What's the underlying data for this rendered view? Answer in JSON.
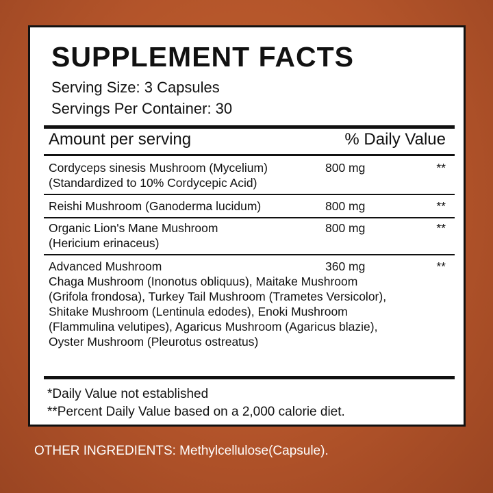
{
  "title": "SUPPLEMENT FACTS",
  "serving_size": "Serving Size: 3 Capsules",
  "servings_per_container": "Servings Per Container: 30",
  "header": {
    "amount": "Amount per serving",
    "daily_value": "% Daily Value"
  },
  "rows": [
    {
      "name": "Cordyceps sinesis Mushroom (Mycelium) (Standardized to 10% Cordycepic Acid)",
      "amount": "800 mg",
      "dv": "**"
    },
    {
      "name": "Reishi Mushroom (Ganoderma lucidum)",
      "amount": "800 mg",
      "dv": "**"
    },
    {
      "name": "Organic Lion's Mane Mushroom (Hericium erinaceus)",
      "amount": "800 mg",
      "dv": "**"
    },
    {
      "name": "Advanced Mushroom",
      "amount": "360 mg",
      "dv": "**",
      "detail": "Chaga Mushroom (Inonotus obliquus), Maitake Mushroom (Grifola frondosa), Turkey Tail Mushroom (Trametes Versicolor), Shitake Mushroom (Lentinula edodes), Enoki Mushroom (Flammulina velutipes), Agaricus Mushroom (Agaricus blazie), Oyster Mushroom (Pleurotus ostreatus)"
    }
  ],
  "footnotes": [
    "*Daily Value not established",
    "**Percent Daily Value based on a 2,000 calorie diet."
  ],
  "other_ingredients": "OTHER INGREDIENTS: Methylcellulose(Capsule).",
  "colors": {
    "background": "#b3542a",
    "panel": "#ffffff",
    "text": "#111111"
  }
}
